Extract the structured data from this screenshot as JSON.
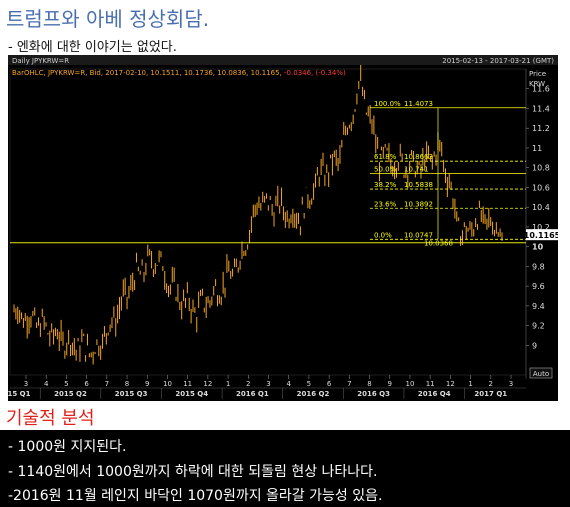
{
  "headline": "트럼프와 아베 정상회담.",
  "subline": "- 엔화에 대한 이야기는 없었다.",
  "chart_header": {
    "left": "Daily JPYKRW=R",
    "right": "2015-02-13 - 2017-03-21 (GMT)"
  },
  "chart_legend": {
    "prefix": "BarOHLC, JPYKRW=R, Bid, 2017-02-10, 10.1511, 10.1736, 10.0836, 10.1165, ",
    "change": "-0.0346, (-0.34%)"
  },
  "price_axis_title": [
    "Price",
    "KRW"
  ],
  "last_price_label": "10.1165",
  "auto_label": "Auto",
  "fib_labels": [
    {
      "pct": "100.0%",
      "value": "11.4073"
    },
    {
      "pct": "61.8%",
      "value": "10.8663"
    },
    {
      "pct": "50.0%",
      "value": "10.741"
    },
    {
      "pct": "38.2%",
      "value": "10.5838"
    },
    {
      "pct": "23.6%",
      "value": "10.3892"
    },
    {
      "pct": "0.0%",
      "value": "10.0747"
    }
  ],
  "low_label": "10.0368",
  "analysis_title": "기술적 분석",
  "analysis_lines": [
    "- 1000원 지지된다.",
    "- 1140원에서 1000원까지 하락에 대한 되돌림 현상 나타나다.",
    "-2016원 11월 레인지 바닥인 1070원까지 올라갈 가능성 있음."
  ],
  "colors": {
    "candle": "#f5a623",
    "fib_line": "#ffff00",
    "support_line": "#e6e600",
    "axis_text": "#dddddd",
    "change_text": "#ff3b3b",
    "headline": "#4a6fb0",
    "analysis_title": "#e0201a"
  },
  "chart_data": {
    "type": "bar",
    "series_name": "JPYKRW=R",
    "date_range": [
      "2015-02-13",
      "2017-03-21"
    ],
    "ylim": [
      8.7,
      11.8
    ],
    "y_ticks": [
      9,
      9.2,
      9.4,
      9.6,
      9.8,
      10,
      10.2,
      10.4,
      10.6,
      10.8,
      11,
      11.2,
      11.4,
      11.6
    ],
    "y_tick_labels": [
      "9",
      "9.2",
      "9.4",
      "9.6",
      "9.8",
      "10",
      "10.2",
      "10.4",
      "10.6",
      "10.8",
      "11",
      "11.2",
      "11.4",
      "11.6"
    ],
    "x_month_labels": [
      "3",
      "4",
      "5",
      "6",
      "7",
      "8",
      "9",
      "10",
      "11",
      "12",
      "1",
      "2",
      "3",
      "4",
      "5",
      "6",
      "7",
      "8",
      "9",
      "10",
      "11",
      "12",
      "1",
      "2",
      "3"
    ],
    "x_quarter_labels": [
      "15 Q1",
      "2015 Q2",
      "2015 Q3",
      "2015 Q4",
      "2016 Q1",
      "2016 Q2",
      "2016 Q3",
      "2016 Q4",
      "2017 Q1"
    ],
    "fibonacci": [
      {
        "level": 100.0,
        "value": 11.4073
      },
      {
        "level": 61.8,
        "value": 10.8663
      },
      {
        "level": 50.0,
        "value": 10.741
      },
      {
        "level": 38.2,
        "value": 10.5838
      },
      {
        "level": 23.6,
        "value": 10.3892
      },
      {
        "level": 0.0,
        "value": 10.0747
      }
    ],
    "support_level": 10.04,
    "last": 10.1165,
    "approx_path": [
      {
        "x": "2015-02",
        "y": 9.35
      },
      {
        "x": "2015-03",
        "y": 9.25
      },
      {
        "x": "2015-04",
        "y": 9.1
      },
      {
        "x": "2015-05",
        "y": 9.0
      },
      {
        "x": "2015-06",
        "y": 8.95
      },
      {
        "x": "2015-07",
        "y": 9.3
      },
      {
        "x": "2015-08",
        "y": 9.7
      },
      {
        "x": "2015-09",
        "y": 9.9
      },
      {
        "x": "2015-10",
        "y": 9.5
      },
      {
        "x": "2015-11",
        "y": 9.35
      },
      {
        "x": "2015-12",
        "y": 9.55
      },
      {
        "x": "2016-01",
        "y": 9.8
      },
      {
        "x": "2016-02",
        "y": 10.45
      },
      {
        "x": "2016-03",
        "y": 10.4
      },
      {
        "x": "2016-04",
        "y": 10.3
      },
      {
        "x": "2016-05",
        "y": 10.7
      },
      {
        "x": "2016-06",
        "y": 10.9
      },
      {
        "x": "2016-07",
        "y": 11.65
      },
      {
        "x": "2016-08",
        "y": 10.9
      },
      {
        "x": "2016-09",
        "y": 10.85
      },
      {
        "x": "2016-10",
        "y": 10.8
      },
      {
        "x": "2016-11",
        "y": 11.0
      },
      {
        "x": "2016-12",
        "y": 10.1
      },
      {
        "x": "2017-01",
        "y": 10.3
      },
      {
        "x": "2017-02",
        "y": 10.12
      }
    ]
  }
}
